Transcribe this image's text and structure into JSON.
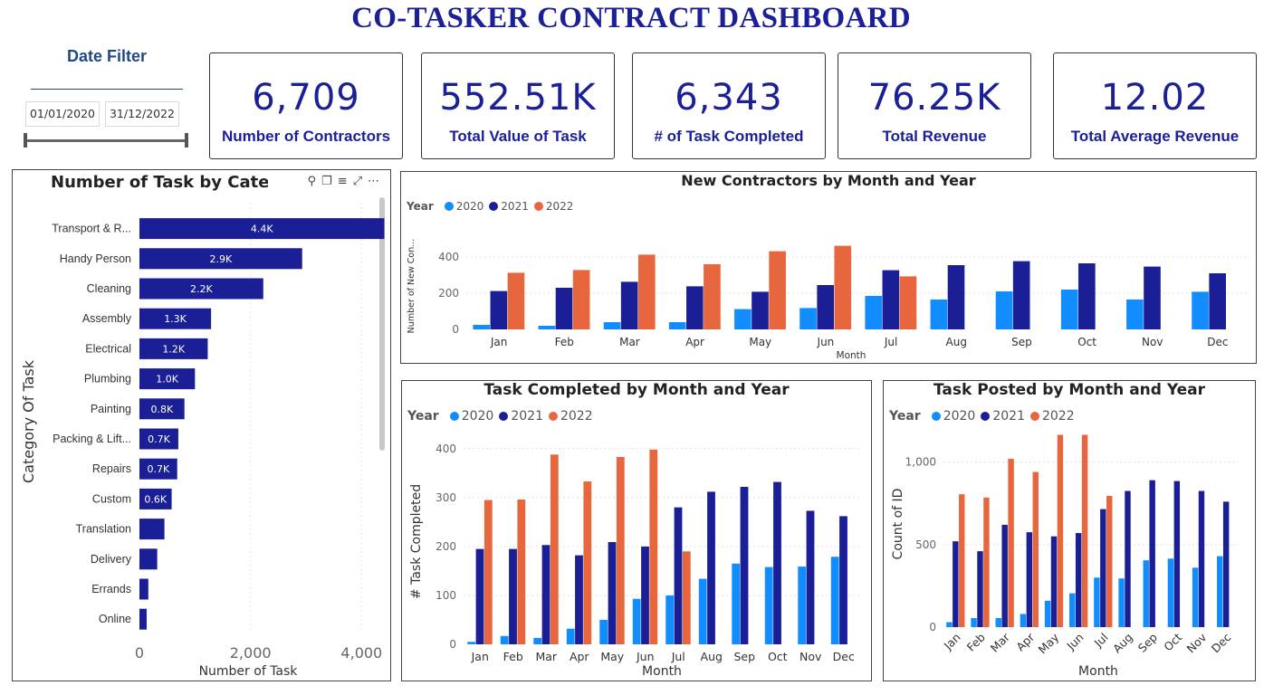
{
  "title": "CO-TASKER CONTRACT DASHBOARD",
  "date_filter": {
    "title": "Date Filter",
    "start": "01/01/2020",
    "end": "31/12/2022"
  },
  "kpis": [
    {
      "value": "6,709",
      "label": "Number of Contractors"
    },
    {
      "value": "552.51K",
      "label": "Total Value of Task"
    },
    {
      "value": "6,343",
      "label": "# of Task Completed"
    },
    {
      "value": "76.25K",
      "label": "Total Revenue"
    },
    {
      "value": "12.02",
      "label": "Total Average Revenue"
    }
  ],
  "colors": {
    "y2020": "#118dff",
    "y2021": "#1a1f96",
    "y2022": "#e8663d",
    "bar": "#1a1f96"
  },
  "legend": {
    "title": "Year",
    "years": [
      "2020",
      "2021",
      "2022"
    ]
  },
  "toolbar_icons": [
    "pin-icon",
    "copy-icon",
    "filter-icon",
    "expand-icon",
    "more-icon"
  ],
  "chart_data": [
    {
      "id": "category",
      "type": "bar",
      "orientation": "horizontal",
      "title": "Number of Task by Category Of Task",
      "xlabel": "Number of Task",
      "ylabel": "Category Of Task",
      "xlim": [
        0,
        4500
      ],
      "xticks": [
        "0",
        "2,000",
        "4,000"
      ],
      "categories": [
        "Transport & R...",
        "Handy Person",
        "Cleaning",
        "Assembly",
        "Electrical",
        "Plumbing",
        "Painting",
        "Packing & Lift...",
        "Repairs",
        "Custom",
        "Translation",
        "Delivery",
        "Errands",
        "Online"
      ],
      "values": [
        4410,
        2930,
        2230,
        1290,
        1230,
        1000,
        810,
        700,
        680,
        580,
        450,
        320,
        160,
        130
      ],
      "data_labels": [
        "4.4K",
        "2.9K",
        "2.2K",
        "1.3K",
        "1.2K",
        "1.0K",
        "0.8K",
        "0.7K",
        "0.7K",
        "0.6K",
        "",
        "",
        "",
        ""
      ]
    },
    {
      "id": "contractors",
      "type": "bar",
      "title": "New Contractors by Month and Year",
      "xlabel": "Month",
      "ylabel": "Number of New Con...",
      "ylim": [
        0,
        480
      ],
      "yticks": [
        0,
        200,
        400
      ],
      "categories": [
        "Jan",
        "Feb",
        "Mar",
        "Apr",
        "May",
        "Jun",
        "Jul",
        "Aug",
        "Sep",
        "Oct",
        "Nov",
        "Dec"
      ],
      "series": [
        {
          "name": "2020",
          "values": [
            25,
            20,
            40,
            40,
            112,
            118,
            185,
            165,
            210,
            220,
            165,
            208
          ]
        },
        {
          "name": "2021",
          "values": [
            212,
            230,
            263,
            238,
            208,
            245,
            327,
            355,
            377,
            365,
            347,
            310
          ]
        },
        {
          "name": "2022",
          "values": [
            313,
            328,
            413,
            360,
            432,
            462,
            293,
            null,
            null,
            null,
            null,
            null
          ]
        }
      ]
    },
    {
      "id": "completed",
      "type": "bar",
      "title": "Task Completed by Month and Year",
      "xlabel": "Month",
      "ylabel": "# Task Completed",
      "ylim": [
        0,
        420
      ],
      "yticks": [
        0,
        100,
        200,
        300,
        400
      ],
      "categories": [
        "Jan",
        "Feb",
        "Mar",
        "Apr",
        "May",
        "Jun",
        "Jul",
        "Aug",
        "Sep",
        "Oct",
        "Nov",
        "Dec"
      ],
      "series": [
        {
          "name": "2020",
          "values": [
            5,
            17,
            13,
            32,
            50,
            93,
            100,
            134,
            165,
            158,
            159,
            179
          ]
        },
        {
          "name": "2021",
          "values": [
            195,
            195,
            203,
            182,
            209,
            200,
            280,
            312,
            322,
            332,
            273,
            262
          ]
        },
        {
          "name": "2022",
          "values": [
            295,
            296,
            388,
            333,
            383,
            398,
            190,
            null,
            null,
            null,
            null,
            null
          ]
        }
      ]
    },
    {
      "id": "posted",
      "type": "bar",
      "title": "Task Posted by Month and Year",
      "xlabel": "Month",
      "ylabel": "Count of ID",
      "ylim": [
        0,
        1250
      ],
      "yticks": [
        0,
        500,
        1000
      ],
      "ytick_labels": [
        "0",
        "500",
        "1,000"
      ],
      "categories": [
        "Jan",
        "Feb",
        "Mar",
        "Apr",
        "May",
        "Jun",
        "Jul",
        "Aug",
        "Sep",
        "Oct",
        "Nov",
        "Dec"
      ],
      "series": [
        {
          "name": "2020",
          "values": [
            30,
            55,
            55,
            80,
            160,
            205,
            300,
            295,
            405,
            415,
            360,
            430
          ]
        },
        {
          "name": "2021",
          "values": [
            520,
            460,
            620,
            575,
            550,
            570,
            715,
            825,
            890,
            885,
            825,
            760
          ]
        },
        {
          "name": "2022",
          "values": [
            805,
            785,
            1020,
            940,
            1165,
            1165,
            795,
            null,
            null,
            null,
            null,
            null
          ]
        }
      ]
    }
  ]
}
